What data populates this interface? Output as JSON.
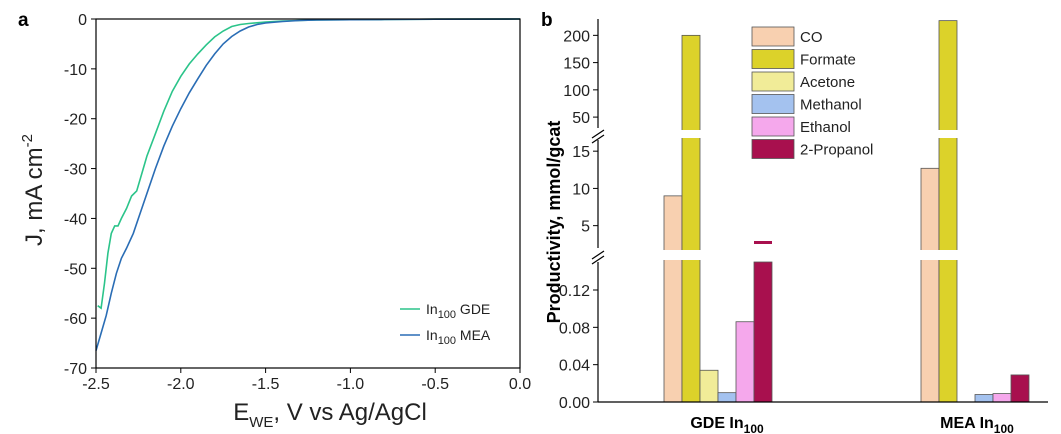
{
  "panel_a": {
    "label": "a",
    "xlabel_main": "E",
    "xlabel_sub": "WE",
    "xlabel_rest": ", V vs Ag/AgCl",
    "ylabel_main": "J, mA cm",
    "ylabel_sup": "-2",
    "legend": [
      {
        "prefix": "In",
        "sub": "100",
        "suffix": " GDE",
        "color": "#2bc48a"
      },
      {
        "prefix": "In",
        "sub": "100",
        "suffix": " MEA",
        "color": "#2a6db5"
      }
    ]
  },
  "panel_b": {
    "label": "b",
    "ylabel": "Productivity, mmol/gcat",
    "categories": [
      {
        "prefix": "GDE In",
        "sub": "100"
      },
      {
        "prefix": "MEA In",
        "sub": "100"
      }
    ]
  },
  "chart_data": [
    {
      "type": "line",
      "xlim": [
        -2.5,
        0.0
      ],
      "ylim": [
        -70,
        0
      ],
      "xticks": [
        "-2.5",
        "-2.0",
        "-1.5",
        "-1.0",
        "-0.5",
        "0.0"
      ],
      "yticks": [
        "0",
        "-10",
        "-20",
        "-30",
        "-40",
        "-50",
        "-60",
        "-70"
      ],
      "series": [
        {
          "name": "In100 GDE",
          "color": "#2bc48a",
          "points": [
            [
              -2.49,
              -57.5
            ],
            [
              -2.47,
              -58
            ],
            [
              -2.45,
              -53
            ],
            [
              -2.43,
              -47
            ],
            [
              -2.41,
              -43
            ],
            [
              -2.39,
              -41.5
            ],
            [
              -2.37,
              -41.5
            ],
            [
              -2.35,
              -40
            ],
            [
              -2.32,
              -38
            ],
            [
              -2.29,
              -35.5
            ],
            [
              -2.26,
              -34.5
            ],
            [
              -2.23,
              -31
            ],
            [
              -2.2,
              -27.5
            ],
            [
              -2.15,
              -23
            ],
            [
              -2.1,
              -18.5
            ],
            [
              -2.05,
              -14.5
            ],
            [
              -2.0,
              -11.5
            ],
            [
              -1.95,
              -9
            ],
            [
              -1.9,
              -7
            ],
            [
              -1.85,
              -5.2
            ],
            [
              -1.8,
              -3.6
            ],
            [
              -1.75,
              -2.4
            ],
            [
              -1.7,
              -1.5
            ],
            [
              -1.65,
              -1.1
            ],
            [
              -1.6,
              -0.9
            ],
            [
              -1.5,
              -0.6
            ],
            [
              -1.4,
              -0.4
            ],
            [
              -1.3,
              -0.3
            ],
            [
              -1.2,
              -0.2
            ],
            [
              -1.0,
              -0.15
            ],
            [
              -0.8,
              -0.1
            ],
            [
              -0.5,
              -0.05
            ],
            [
              0.0,
              0.0
            ]
          ]
        },
        {
          "name": "In100 MEA",
          "color": "#2a6db5",
          "points": [
            [
              -2.5,
              -66.5
            ],
            [
              -2.47,
              -63
            ],
            [
              -2.44,
              -59.5
            ],
            [
              -2.41,
              -55
            ],
            [
              -2.38,
              -51
            ],
            [
              -2.35,
              -48
            ],
            [
              -2.32,
              -46
            ],
            [
              -2.28,
              -43
            ],
            [
              -2.25,
              -40
            ],
            [
              -2.2,
              -35
            ],
            [
              -2.15,
              -30
            ],
            [
              -2.1,
              -25.5
            ],
            [
              -2.05,
              -21.5
            ],
            [
              -2.0,
              -18
            ],
            [
              -1.95,
              -14.8
            ],
            [
              -1.9,
              -12
            ],
            [
              -1.85,
              -9.3
            ],
            [
              -1.8,
              -7
            ],
            [
              -1.75,
              -5
            ],
            [
              -1.7,
              -3.5
            ],
            [
              -1.65,
              -2.4
            ],
            [
              -1.6,
              -1.6
            ],
            [
              -1.55,
              -1.1
            ],
            [
              -1.5,
              -0.8
            ],
            [
              -1.4,
              -0.5
            ],
            [
              -1.3,
              -0.3
            ],
            [
              -1.2,
              -0.2
            ],
            [
              -1.0,
              -0.15
            ],
            [
              -0.8,
              -0.1
            ],
            [
              -0.5,
              -0.05
            ],
            [
              0.0,
              0.0
            ]
          ]
        }
      ]
    },
    {
      "type": "bar",
      "y_scale": "broken",
      "ylim_segments": [
        [
          0.0,
          0.15
        ],
        [
          2.0,
          16.5
        ],
        [
          30,
          230
        ]
      ],
      "yticks_segments": [
        [
          "0.00",
          "0.04",
          "0.08",
          "0.12"
        ],
        [
          "5",
          "10",
          "15"
        ],
        [
          "50",
          "100",
          "150",
          "200"
        ]
      ],
      "categories": [
        "GDE In100",
        "MEA In100"
      ],
      "series": [
        {
          "name": "CO",
          "color": "#f8d0b0",
          "values": [
            9.0,
            12.7
          ]
        },
        {
          "name": "Formate",
          "color": "#dcd22a",
          "values": [
            200,
            227
          ]
        },
        {
          "name": "Acetone",
          "color": "#f1ec98",
          "values": [
            0.034,
            0
          ]
        },
        {
          "name": "Methanol",
          "color": "#a4c2ef",
          "values": [
            0.01,
            0.008
          ]
        },
        {
          "name": "Ethanol",
          "color": "#f5a8ec",
          "values": [
            0.086,
            0.009
          ]
        },
        {
          "name": "2-Propanol",
          "color": "#a8104e",
          "values": [
            0.15,
            0.029
          ]
        }
      ],
      "legend": "top-center"
    }
  ]
}
